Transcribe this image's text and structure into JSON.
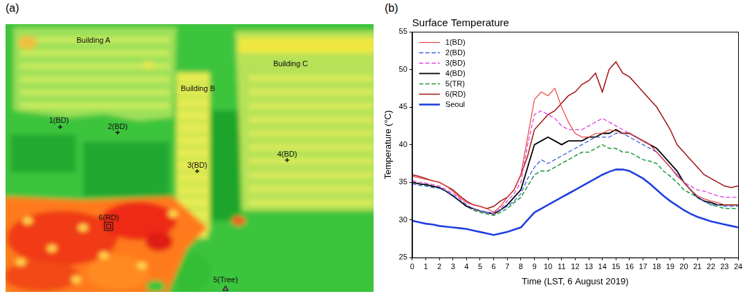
{
  "panel_labels": [
    "(a)",
    "(b)"
  ],
  "thermal_image": {
    "labels": [
      "Building A",
      "Building B",
      "Building C"
    ],
    "points": [
      {
        "label": "1(BD)",
        "marker": "plus"
      },
      {
        "label": "2(BD)",
        "marker": "plus"
      },
      {
        "label": "3(BD)",
        "marker": "plus"
      },
      {
        "label": "4(BD)",
        "marker": "plus"
      },
      {
        "label": "5(Tree)",
        "marker": "triangle"
      },
      {
        "label": "6(RD)",
        "marker": "square"
      }
    ]
  },
  "chart_data": {
    "type": "line",
    "title": "Surface Temperature",
    "x_label": "Time (LST, 6 August 2019)",
    "y_label": "Temperature (°C)",
    "x": [
      0,
      0.5,
      1,
      1.5,
      2,
      2.5,
      3,
      3.5,
      4,
      4.5,
      5,
      5.5,
      6,
      6.5,
      7,
      7.5,
      8,
      8.5,
      9,
      9.5,
      10,
      10.5,
      11,
      11.5,
      12,
      12.5,
      13,
      13.5,
      14,
      14.5,
      15,
      15.5,
      16,
      16.5,
      17,
      17.5,
      18,
      18.5,
      19,
      19.5,
      20,
      20.5,
      21,
      21.5,
      22,
      22.5,
      23,
      23.5,
      24
    ],
    "xlim": [
      0,
      24
    ],
    "xticks": [
      0,
      1,
      2,
      3,
      4,
      5,
      6,
      7,
      8,
      9,
      10,
      11,
      12,
      13,
      14,
      15,
      16,
      17,
      18,
      19,
      20,
      21,
      22,
      23,
      24
    ],
    "ylim": [
      25,
      55
    ],
    "yticks": [
      25,
      30,
      35,
      40,
      45,
      50,
      55
    ],
    "grid": false,
    "legend": "upper left",
    "series": [
      {
        "name": "1(BD)",
        "color": "#e8413c",
        "line_style": "solid",
        "values": [
          35.8,
          35.6,
          35.4,
          35.2,
          35.0,
          34.5,
          33.8,
          33.0,
          32.3,
          32.0,
          31.8,
          31.5,
          31.0,
          31.8,
          33.0,
          34.0,
          36.0,
          41.0,
          46.0,
          47.0,
          46.5,
          47.5,
          45.0,
          43.0,
          41.5,
          41.0,
          41.0,
          41.5,
          41.5,
          42.0,
          41.8,
          41.5,
          41.5,
          41.0,
          40.5,
          40.0,
          39.0,
          38.0,
          37.0,
          35.8,
          35.0,
          34.0,
          33.2,
          32.8,
          32.5,
          32.3,
          32.0,
          32.0,
          32.0
        ]
      },
      {
        "name": "2(BD)",
        "color": "#3a5fe0",
        "line_style": "dashed",
        "values": [
          34.8,
          34.6,
          34.5,
          34.3,
          34.2,
          33.8,
          33.3,
          32.6,
          32.0,
          31.5,
          31.2,
          31.0,
          31.0,
          31.3,
          31.8,
          32.5,
          33.5,
          35.5,
          37.0,
          38.0,
          37.5,
          38.0,
          38.5,
          39.0,
          39.5,
          40.0,
          40.5,
          41.0,
          41.0,
          41.0,
          41.5,
          41.5,
          41.0,
          40.5,
          40.0,
          39.5,
          39.0,
          38.0,
          37.0,
          36.0,
          35.0,
          34.0,
          33.0,
          32.5,
          32.0,
          32.0,
          31.8,
          31.8,
          31.8
        ]
      },
      {
        "name": "3(BD)",
        "color": "#e040e0",
        "line_style": "dashed",
        "values": [
          35.2,
          35.0,
          34.9,
          34.7,
          34.5,
          34.0,
          33.5,
          32.8,
          32.0,
          31.5,
          31.2,
          31.0,
          30.8,
          31.5,
          32.5,
          33.5,
          35.0,
          40.0,
          44.0,
          44.5,
          44.0,
          43.5,
          42.5,
          42.0,
          42.0,
          42.0,
          42.5,
          43.0,
          43.5,
          43.0,
          42.5,
          42.0,
          41.5,
          41.0,
          40.5,
          40.0,
          39.0,
          38.0,
          37.0,
          36.0,
          35.0,
          34.5,
          34.0,
          33.8,
          33.5,
          33.2,
          33.0,
          33.0,
          33.0
        ]
      },
      {
        "name": "4(BD)",
        "color": "#000000",
        "line_style": "solid",
        "values": [
          35.0,
          34.8,
          34.7,
          34.5,
          34.3,
          33.8,
          33.2,
          32.5,
          31.8,
          31.5,
          31.2,
          31.0,
          30.8,
          31.3,
          32.0,
          33.0,
          34.0,
          37.0,
          40.0,
          40.5,
          41.0,
          40.5,
          40.0,
          40.5,
          40.5,
          40.5,
          41.0,
          41.0,
          41.5,
          41.5,
          42.0,
          41.5,
          41.5,
          41.0,
          40.5,
          40.0,
          39.5,
          38.5,
          37.5,
          36.5,
          35.0,
          34.0,
          33.0,
          32.5,
          32.3,
          32.0,
          32.0,
          32.0,
          32.0
        ]
      },
      {
        "name": "5(TR)",
        "color": "#1a9a3a",
        "line_style": "dashed",
        "values": [
          35.0,
          34.8,
          34.6,
          34.4,
          34.2,
          33.8,
          33.2,
          32.5,
          31.8,
          31.3,
          31.0,
          30.8,
          30.6,
          31.0,
          31.5,
          32.3,
          33.0,
          34.5,
          36.0,
          36.5,
          36.5,
          37.0,
          37.5,
          38.0,
          38.5,
          39.0,
          39.0,
          39.5,
          40.0,
          39.5,
          39.5,
          39.0,
          39.0,
          38.5,
          38.0,
          37.8,
          37.5,
          36.5,
          35.8,
          35.0,
          34.0,
          33.5,
          33.0,
          32.5,
          32.0,
          31.8,
          31.5,
          31.5,
          31.5
        ]
      },
      {
        "name": "6(RD)",
        "color": "#a01010",
        "line_style": "solid",
        "values": [
          36.0,
          35.8,
          35.5,
          35.2,
          35.0,
          34.5,
          34.0,
          33.2,
          32.5,
          32.0,
          31.8,
          31.5,
          31.8,
          32.5,
          33.0,
          34.0,
          36.0,
          38.5,
          42.0,
          43.0,
          44.0,
          44.5,
          45.5,
          46.5,
          47.0,
          48.0,
          48.5,
          49.5,
          47.0,
          50.0,
          51.0,
          49.5,
          49.0,
          48.0,
          47.0,
          46.0,
          45.0,
          43.5,
          42.0,
          40.0,
          39.0,
          38.0,
          37.0,
          36.0,
          35.5,
          35.0,
          34.5,
          34.3,
          34.5
        ]
      },
      {
        "name": "Seoul",
        "color": "#1f3fe0",
        "line_style": "solid",
        "values": [
          29.9,
          29.7,
          29.5,
          29.4,
          29.2,
          29.1,
          29.0,
          28.9,
          28.8,
          28.6,
          28.4,
          28.2,
          28.0,
          28.2,
          28.4,
          28.7,
          29.0,
          30.0,
          31.0,
          31.5,
          32.0,
          32.5,
          33.0,
          33.5,
          34.0,
          34.5,
          35.0,
          35.5,
          36.0,
          36.4,
          36.7,
          36.7,
          36.5,
          36.0,
          35.5,
          34.8,
          34.0,
          33.2,
          32.5,
          31.9,
          31.3,
          30.8,
          30.4,
          30.1,
          29.8,
          29.6,
          29.4,
          29.2,
          29.0
        ]
      }
    ]
  }
}
